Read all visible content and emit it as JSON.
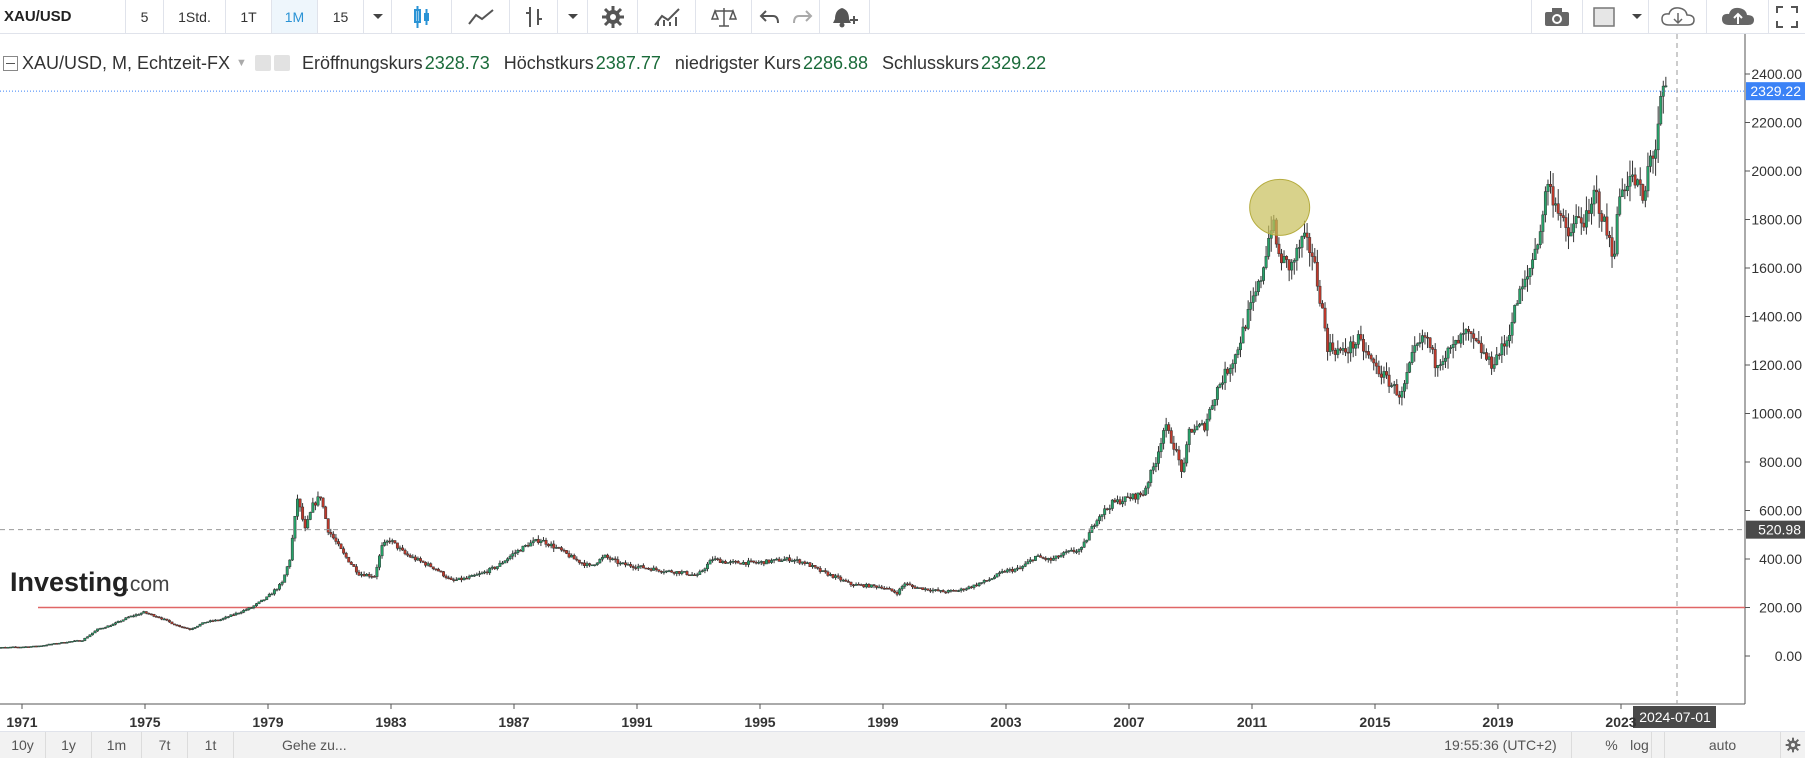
{
  "toolbar": {
    "symbol": "XAU/USD",
    "intervals": [
      "5",
      "1Std.",
      "1T",
      "1M",
      "15"
    ],
    "active_interval": "1M"
  },
  "legend": {
    "symbol_line": "XAU/USD, M, Echtzeit-FX",
    "open_label": "Eröffnungskurs",
    "open_value": "2328.73",
    "high_label": "Höchstkurs",
    "high_value": "2387.77",
    "low_label": "niedrigster Kurs",
    "low_value": "2286.88",
    "close_label": "Schlusskurs",
    "close_value": "2329.22"
  },
  "watermark": {
    "brand": "Investing",
    "suffix": ".com"
  },
  "bottom": {
    "ranges": [
      "10y",
      "1y",
      "1m",
      "7t",
      "1t"
    ],
    "goto": "Gehe zu...",
    "time": "19:55:36 (UTC+2)",
    "percent": "%",
    "log": "log",
    "auto": "auto"
  },
  "colors": {
    "up": "#26a269",
    "down": "#c0392b",
    "support": "#e06666",
    "highlight": "#c8bf5a",
    "price_badge": "#3b82f6",
    "crosshair_badge": "#4a4a4a"
  },
  "chart_data": {
    "type": "candlestick",
    "instrument": "XAU/USD",
    "interval": "monthly",
    "x_ticks": [
      "1971",
      "1975",
      "1979",
      "1983",
      "1987",
      "1991",
      "1995",
      "1999",
      "2003",
      "2007",
      "2011",
      "2015",
      "2019",
      "2023"
    ],
    "y_ticks": [
      "0.00",
      "200.00",
      "400.00",
      "600.00",
      "800.00",
      "1000.00",
      "1200.00",
      "1400.00",
      "1600.00",
      "1800.00",
      "2000.00",
      "2200.00",
      "2400.00"
    ],
    "y_range": [
      -200,
      2480
    ],
    "last_price": "2329.22",
    "crosshair_price": "520.98",
    "crosshair_date": "2024-07-01",
    "support_line": 200,
    "highlight": {
      "x": 2011.9,
      "y": 1850
    },
    "series": [
      [
        1970.5,
        35
      ],
      [
        1971.5,
        40
      ],
      [
        1972.5,
        58
      ],
      [
        1973.0,
        65
      ],
      [
        1973.5,
        110
      ],
      [
        1974.0,
        130
      ],
      [
        1974.5,
        160
      ],
      [
        1975.0,
        180
      ],
      [
        1975.5,
        160
      ],
      [
        1976.0,
        130
      ],
      [
        1976.5,
        110
      ],
      [
        1977.0,
        140
      ],
      [
        1977.5,
        150
      ],
      [
        1978.0,
        175
      ],
      [
        1978.5,
        200
      ],
      [
        1979.0,
        240
      ],
      [
        1979.5,
        300
      ],
      [
        1979.75,
        400
      ],
      [
        1980.0,
        650
      ],
      [
        1980.25,
        520
      ],
      [
        1980.5,
        620
      ],
      [
        1980.75,
        660
      ],
      [
        1981.0,
        520
      ],
      [
        1981.5,
        420
      ],
      [
        1982.0,
        340
      ],
      [
        1982.5,
        330
      ],
      [
        1982.75,
        450
      ],
      [
        1983.0,
        480
      ],
      [
        1983.5,
        420
      ],
      [
        1984.0,
        390
      ],
      [
        1984.5,
        360
      ],
      [
        1985.0,
        310
      ],
      [
        1985.5,
        320
      ],
      [
        1986.0,
        340
      ],
      [
        1986.5,
        370
      ],
      [
        1987.0,
        420
      ],
      [
        1987.5,
        460
      ],
      [
        1987.9,
        480
      ],
      [
        1988.5,
        440
      ],
      [
        1989.0,
        400
      ],
      [
        1989.5,
        370
      ],
      [
        1990.0,
        410
      ],
      [
        1990.5,
        380
      ],
      [
        1991.0,
        370
      ],
      [
        1991.5,
        360
      ],
      [
        1992.0,
        350
      ],
      [
        1992.5,
        345
      ],
      [
        1993.0,
        330
      ],
      [
        1993.5,
        400
      ],
      [
        1994.0,
        385
      ],
      [
        1995.0,
        385
      ],
      [
        1996.0,
        400
      ],
      [
        1996.5,
        385
      ],
      [
        1997.0,
        350
      ],
      [
        1997.5,
        325
      ],
      [
        1998.0,
        295
      ],
      [
        1998.5,
        290
      ],
      [
        1999.0,
        285
      ],
      [
        1999.5,
        260
      ],
      [
        1999.75,
        300
      ],
      [
        2000.0,
        285
      ],
      [
        2000.5,
        275
      ],
      [
        2001.0,
        265
      ],
      [
        2001.5,
        270
      ],
      [
        2002.0,
        290
      ],
      [
        2002.5,
        315
      ],
      [
        2003.0,
        350
      ],
      [
        2003.5,
        360
      ],
      [
        2004.0,
        410
      ],
      [
        2004.5,
        395
      ],
      [
        2005.0,
        425
      ],
      [
        2005.5,
        440
      ],
      [
        2006.0,
        570
      ],
      [
        2006.5,
        630
      ],
      [
        2007.0,
        650
      ],
      [
        2007.5,
        670
      ],
      [
        2007.9,
        800
      ],
      [
        2008.2,
        950
      ],
      [
        2008.5,
        870
      ],
      [
        2008.8,
        750
      ],
      [
        2009.0,
        930
      ],
      [
        2009.5,
        950
      ],
      [
        2009.9,
        1100
      ],
      [
        2010.5,
        1240
      ],
      [
        2010.9,
        1400
      ],
      [
        2011.3,
        1540
      ],
      [
        2011.7,
        1800
      ],
      [
        2011.9,
        1650
      ],
      [
        2012.3,
        1600
      ],
      [
        2012.7,
        1720
      ],
      [
        2013.0,
        1660
      ],
      [
        2013.3,
        1450
      ],
      [
        2013.5,
        1280
      ],
      [
        2014.0,
        1250
      ],
      [
        2014.5,
        1300
      ],
      [
        2015.0,
        1200
      ],
      [
        2015.5,
        1130
      ],
      [
        2015.9,
        1070
      ],
      [
        2016.3,
        1250
      ],
      [
        2016.7,
        1320
      ],
      [
        2017.0,
        1210
      ],
      [
        2017.5,
        1260
      ],
      [
        2018.0,
        1330
      ],
      [
        2018.5,
        1260
      ],
      [
        2018.8,
        1200
      ],
      [
        2019.3,
        1290
      ],
      [
        2019.7,
        1480
      ],
      [
        2020.0,
        1560
      ],
      [
        2020.5,
        1800
      ],
      [
        2020.6,
        1960
      ],
      [
        2021.0,
        1850
      ],
      [
        2021.3,
        1720
      ],
      [
        2021.6,
        1800
      ],
      [
        2022.0,
        1800
      ],
      [
        2022.2,
        1920
      ],
      [
        2022.5,
        1780
      ],
      [
        2022.8,
        1650
      ],
      [
        2023.0,
        1900
      ],
      [
        2023.3,
        1980
      ],
      [
        2023.6,
        1940
      ],
      [
        2023.8,
        1860
      ],
      [
        2023.95,
        2050
      ],
      [
        2024.15,
        2080
      ],
      [
        2024.3,
        2250
      ],
      [
        2024.45,
        2330
      ]
    ]
  }
}
